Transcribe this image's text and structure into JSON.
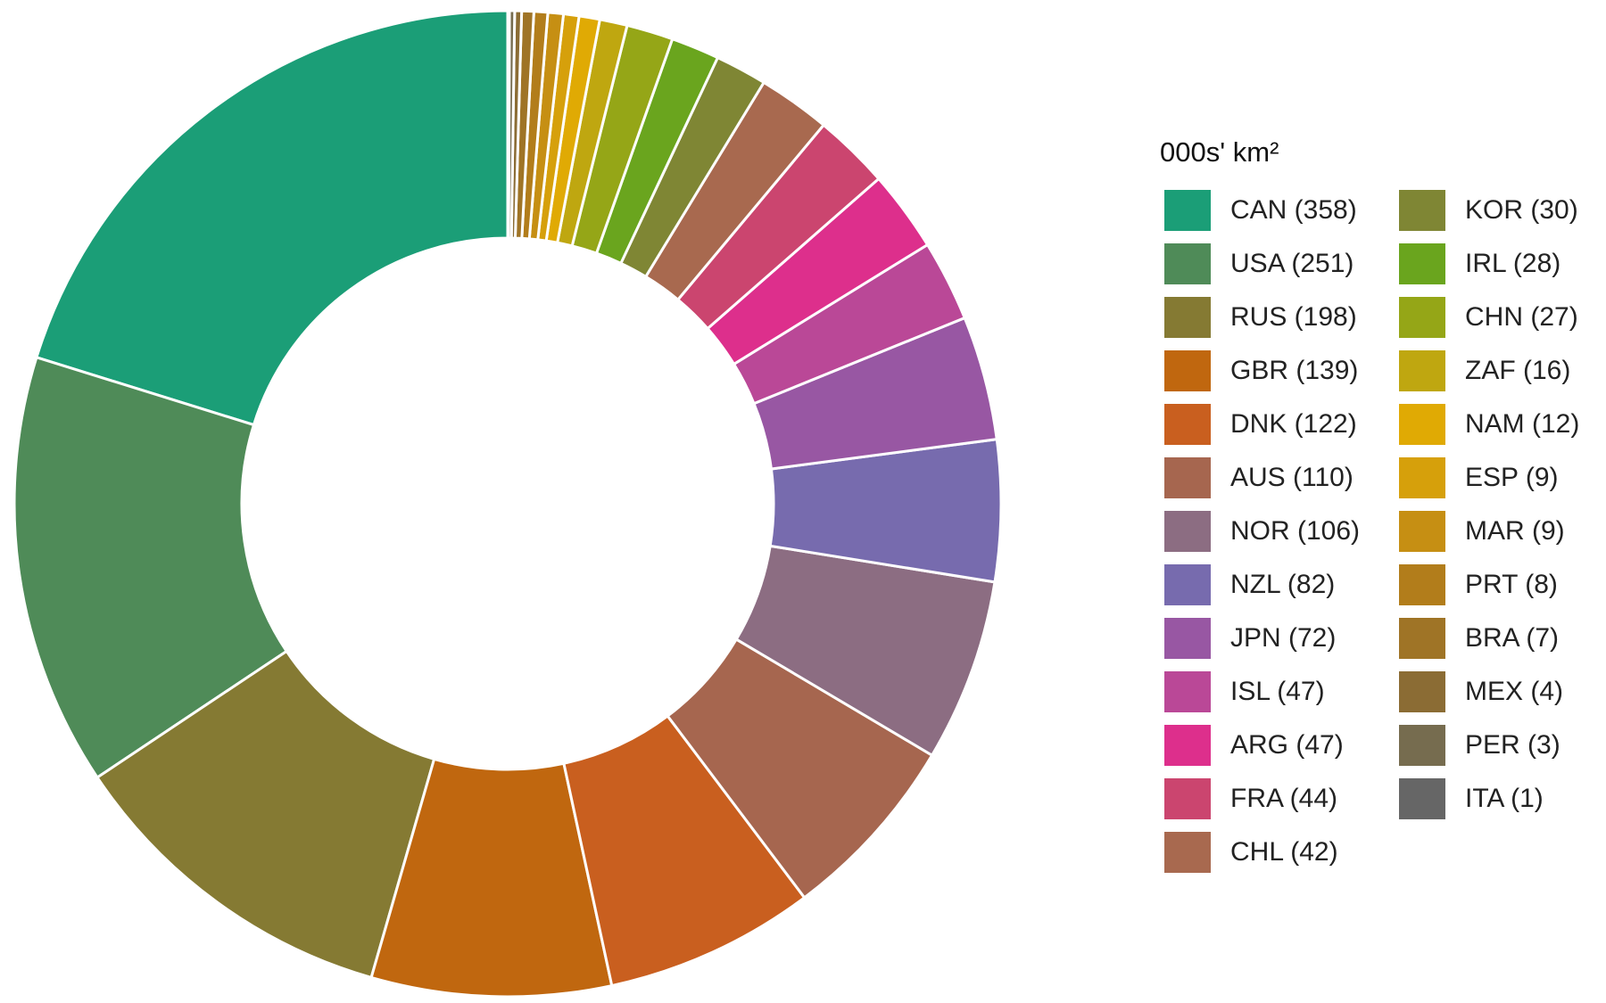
{
  "chart_data": {
    "type": "donut",
    "legend_title": "000s' km²",
    "categories": [
      "CAN (358)",
      "USA (251)",
      "RUS (198)",
      "GBR (139)",
      "DNK (122)",
      "AUS (110)",
      "NOR (106)",
      "NZL (82)",
      "JPN (72)",
      "ISL (47)",
      "ARG (47)",
      "FRA (44)",
      "CHL (42)",
      "KOR (30)",
      "IRL (28)",
      "CHN (27)",
      "ZAF (16)",
      "NAM (12)",
      "ESP (9)",
      "MAR (9)",
      "PRT (8)",
      "BRA (7)",
      "MEX (4)",
      "PER (3)",
      "ITA (1)"
    ],
    "values": [
      358,
      251,
      198,
      139,
      122,
      110,
      106,
      82,
      72,
      47,
      47,
      44,
      42,
      30,
      28,
      27,
      16,
      12,
      9,
      9,
      8,
      7,
      4,
      3,
      1
    ],
    "colors": [
      "#1b9e77",
      "#4f8b58",
      "#857a33",
      "#c0670f",
      "#c95f1f",
      "#a6664f",
      "#8c6d82",
      "#776bae",
      "#9857a3",
      "#ba4897",
      "#dd2f8c",
      "#cb456f",
      "#a8694f",
      "#7f8634",
      "#6aa51e",
      "#95a617",
      "#bfa710",
      "#e0aa04",
      "#d6a00b",
      "#c68f13",
      "#b27d1b",
      "#9f7426",
      "#8b6c34",
      "#766c4f",
      "#666666"
    ]
  }
}
